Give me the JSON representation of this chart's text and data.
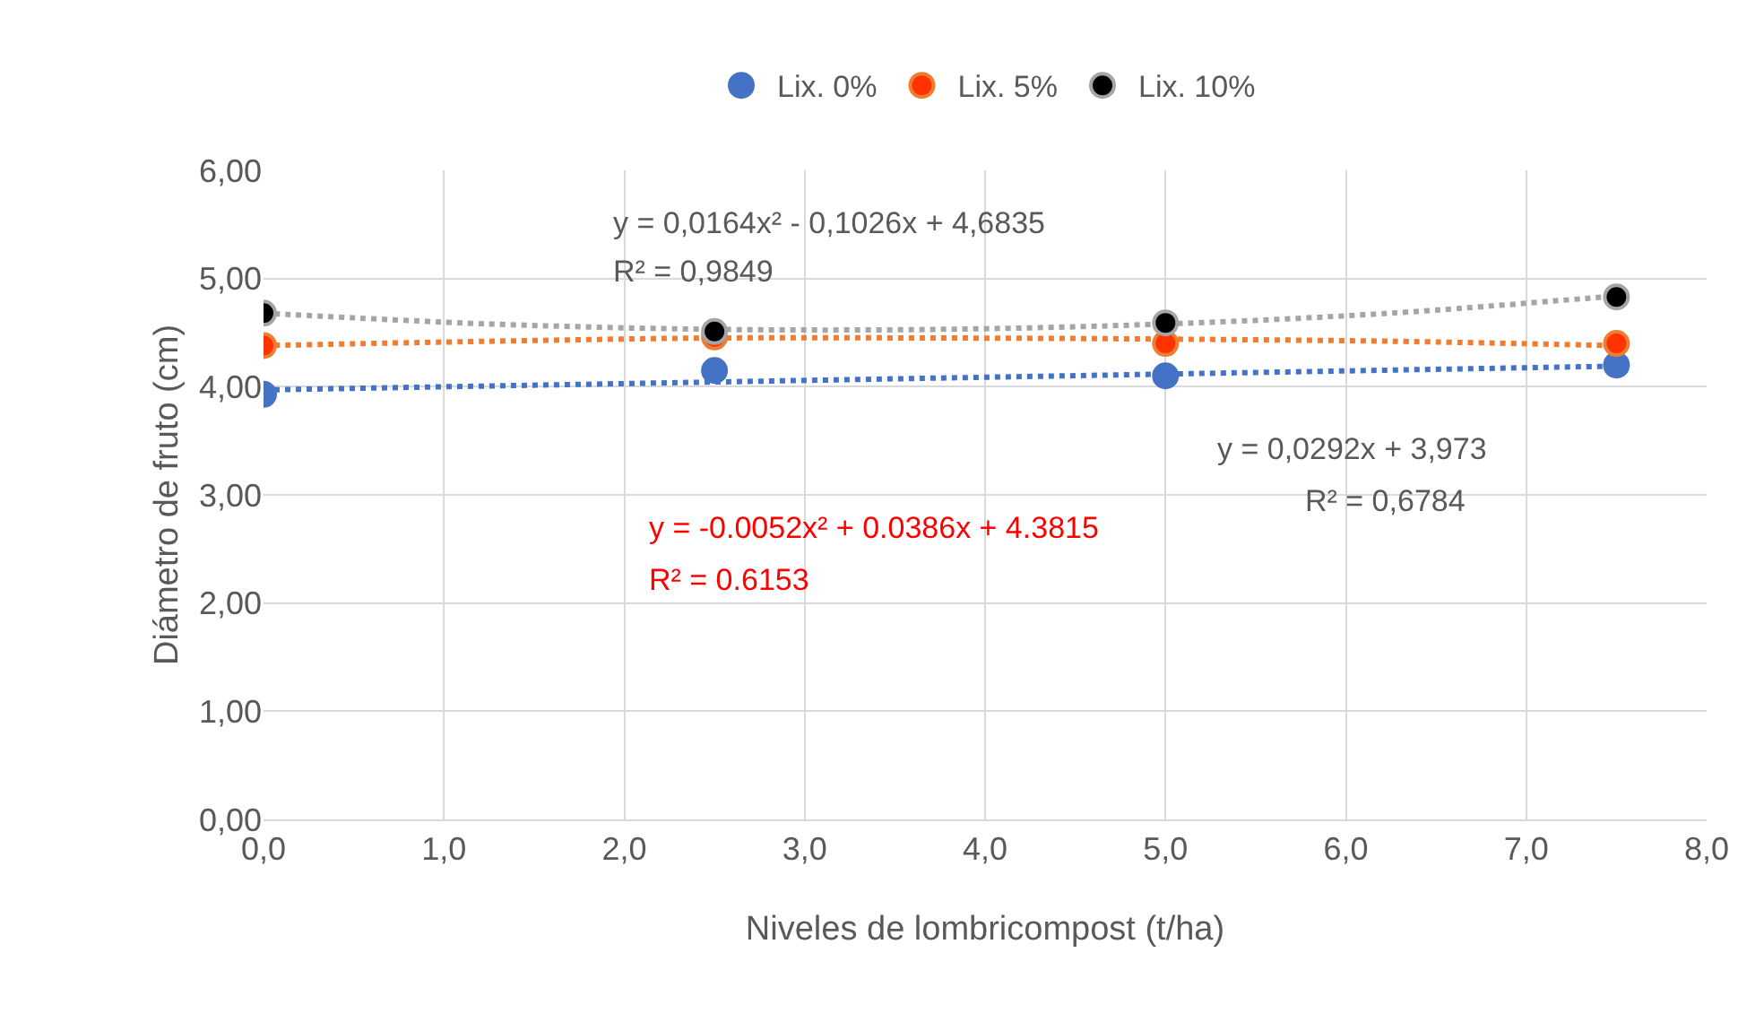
{
  "chart_data": {
    "type": "scatter",
    "xlabel": "Niveles de lombricompost (t/ha)",
    "ylabel": "Diámetro de fruto (cm)",
    "xlim": [
      0,
      8
    ],
    "ylim": [
      0,
      6
    ],
    "xticks": [
      {
        "value": 0,
        "label": "0,0"
      },
      {
        "value": 1,
        "label": "1,0"
      },
      {
        "value": 2,
        "label": "2,0"
      },
      {
        "value": 3,
        "label": "3,0"
      },
      {
        "value": 4,
        "label": "4,0"
      },
      {
        "value": 5,
        "label": "5,0"
      },
      {
        "value": 6,
        "label": "6,0"
      },
      {
        "value": 7,
        "label": "7,0"
      },
      {
        "value": 8,
        "label": "8,0"
      }
    ],
    "yticks": [
      {
        "value": 0,
        "label": "0,00"
      },
      {
        "value": 1,
        "label": "1,00"
      },
      {
        "value": 2,
        "label": "2,00"
      },
      {
        "value": 3,
        "label": "3,00"
      },
      {
        "value": 4,
        "label": "4,00"
      },
      {
        "value": 5,
        "label": "5,00"
      },
      {
        "value": 6,
        "label": "6,00"
      }
    ],
    "grid": true,
    "legend": "top",
    "series": [
      {
        "type": "line",
        "color": "#4472c4",
        "line_style": "dotted",
        "marker": "none",
        "x": [
          0,
          7.5
        ],
        "values": [
          3.97,
          4.19
        ]
      },
      {
        "type": "line",
        "color": "#ed7d31",
        "line_style": "dotted",
        "marker": "none",
        "x": [
          0,
          1.25,
          2.5,
          3.75,
          5,
          6.25,
          7.5
        ],
        "values": [
          4.38,
          4.42,
          4.45,
          4.45,
          4.44,
          4.42,
          4.38
        ]
      },
      {
        "type": "line",
        "color": "#a5a5a5",
        "line_style": "dotted",
        "marker": "none",
        "x": [
          0,
          1.25,
          2.5,
          3.75,
          5,
          6.25,
          7.5
        ],
        "values": [
          4.68,
          4.58,
          4.53,
          4.53,
          4.58,
          4.68,
          4.84
        ]
      },
      {
        "name": "Lix. 0%",
        "color": "#4472c4",
        "marker": "circle",
        "x": [
          0,
          2.5,
          5,
          7.5
        ],
        "values": [
          3.93,
          4.15,
          4.1,
          4.2
        ]
      },
      {
        "name": "Lix. 5%",
        "color": "#ff3300",
        "marker": "circle",
        "x": [
          0,
          2.5,
          5,
          7.5
        ],
        "values": [
          4.38,
          4.46,
          4.4,
          4.4
        ]
      },
      {
        "name": "Lix. 10%",
        "color": "#000000",
        "marker": "circle",
        "x": [
          0,
          2.5,
          5,
          7.5
        ],
        "values": [
          4.68,
          4.51,
          4.59,
          4.83
        ]
      }
    ],
    "annotations": [
      "y = 0,0164x² - 0,1026x + 4,6835",
      "R² = 0,9849",
      "y = 0,0292x + 3,973",
      "R² = 0,6784",
      "y = -0.0052x² + 0.0386x + 4.3815",
      "R² = 0.6153"
    ]
  }
}
